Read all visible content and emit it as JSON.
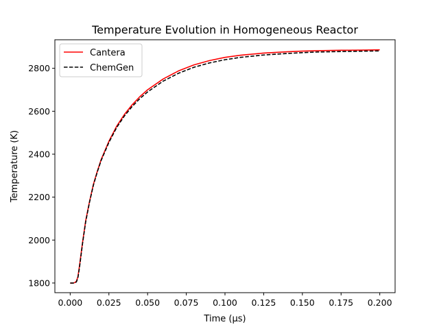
{
  "chart_data": {
    "type": "line",
    "title": "Temperature Evolution in Homogeneous Reactor",
    "xlabel": "Time (μs)",
    "ylabel": "Temperature (K)",
    "xlim": [
      -0.0099,
      0.2099
    ],
    "ylim": [
      1755,
      2933
    ],
    "xticks": [
      0.0,
      0.025,
      0.05,
      0.075,
      0.1,
      0.125,
      0.15,
      0.175,
      0.2
    ],
    "xtick_labels": [
      "0.000",
      "0.025",
      "0.050",
      "0.075",
      "0.100",
      "0.125",
      "0.150",
      "0.175",
      "0.200"
    ],
    "yticks": [
      1800,
      2000,
      2200,
      2400,
      2600,
      2800
    ],
    "ytick_labels": [
      "1800",
      "2000",
      "2200",
      "2400",
      "2600",
      "2800"
    ],
    "grid": false,
    "legend_position": "upper-left",
    "series": [
      {
        "name": "Cantera",
        "color": "#ff0000",
        "style": "solid",
        "x": [
          0.0,
          0.002,
          0.003,
          0.004,
          0.005,
          0.006,
          0.008,
          0.01,
          0.0125,
          0.015,
          0.0175,
          0.02,
          0.025,
          0.03,
          0.035,
          0.04,
          0.045,
          0.05,
          0.06,
          0.07,
          0.08,
          0.09,
          0.1,
          0.11,
          0.125,
          0.14,
          0.15,
          0.16,
          0.175,
          0.19,
          0.2
        ],
        "y": [
          1800,
          1800,
          1802,
          1808,
          1830,
          1880,
          1990,
          2090,
          2180,
          2260,
          2320,
          2375,
          2460,
          2530,
          2585,
          2630,
          2668,
          2700,
          2750,
          2788,
          2816,
          2836,
          2851,
          2861,
          2871,
          2877,
          2880,
          2882,
          2884,
          2885,
          2886
        ]
      },
      {
        "name": "ChemGen",
        "color": "#000000",
        "style": "dashed",
        "x": [
          0.0,
          0.002,
          0.003,
          0.004,
          0.005,
          0.006,
          0.008,
          0.01,
          0.0125,
          0.015,
          0.0175,
          0.02,
          0.025,
          0.03,
          0.035,
          0.04,
          0.045,
          0.05,
          0.06,
          0.07,
          0.08,
          0.09,
          0.1,
          0.11,
          0.125,
          0.14,
          0.15,
          0.16,
          0.175,
          0.19,
          0.2
        ],
        "y": [
          1800,
          1800,
          1801,
          1805,
          1825,
          1872,
          1985,
          2085,
          2177,
          2256,
          2317,
          2371,
          2455,
          2524,
          2578,
          2622,
          2659,
          2690,
          2740,
          2777,
          2805,
          2825,
          2840,
          2851,
          2862,
          2869,
          2873,
          2876,
          2878,
          2880,
          2881
        ]
      }
    ]
  }
}
